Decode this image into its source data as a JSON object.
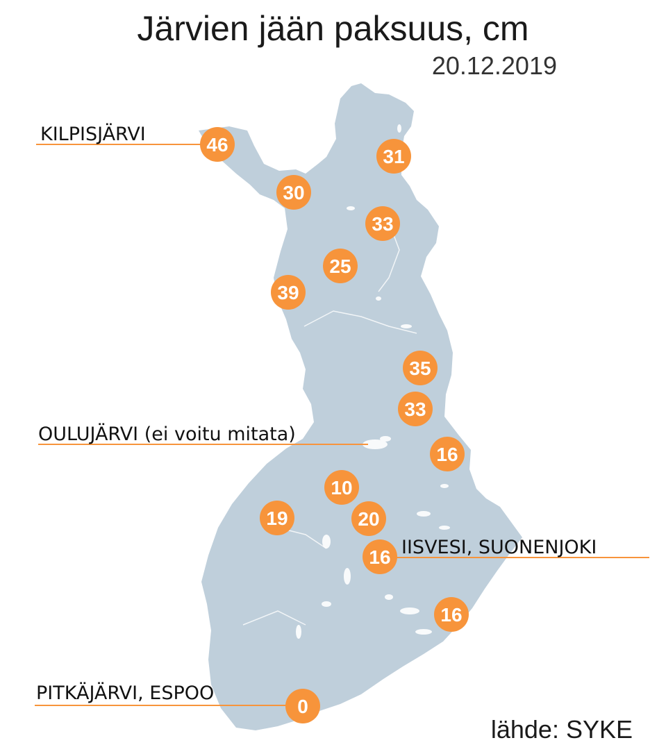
{
  "title": "Järvien jään paksuus, cm",
  "date": "20.12.2019",
  "source": "lähde: SYKE",
  "colors": {
    "land": "#bfcfdb",
    "marker": "#f7943b",
    "marker_text": "#ffffff",
    "leader_line": "#f7943b",
    "lakes": "#ffffff"
  },
  "labels": {
    "kilpisjarvi": "KILPISJÄRVI",
    "oulujarvi": "OULUJÄRVI (ei voitu mitata)",
    "iisvesi": "IISVESI, SUONENJOKI",
    "pitkajarvi": "PITKÄJÄRVI, ESPOO"
  },
  "stations": [
    {
      "id": "kilpisjarvi",
      "value": "46"
    },
    {
      "id": "north-east-1",
      "value": "31"
    },
    {
      "id": "north-west-2",
      "value": "30"
    },
    {
      "id": "north-3",
      "value": "33"
    },
    {
      "id": "lapland-central",
      "value": "25"
    },
    {
      "id": "lapland-west",
      "value": "39"
    },
    {
      "id": "east-1",
      "value": "35"
    },
    {
      "id": "east-2",
      "value": "33"
    },
    {
      "id": "east-3",
      "value": "16"
    },
    {
      "id": "central-1",
      "value": "10"
    },
    {
      "id": "west-central",
      "value": "19"
    },
    {
      "id": "central-2",
      "value": "20"
    },
    {
      "id": "iisvesi",
      "value": "16"
    },
    {
      "id": "south-east",
      "value": "16"
    },
    {
      "id": "pitkajarvi",
      "value": "0"
    }
  ]
}
